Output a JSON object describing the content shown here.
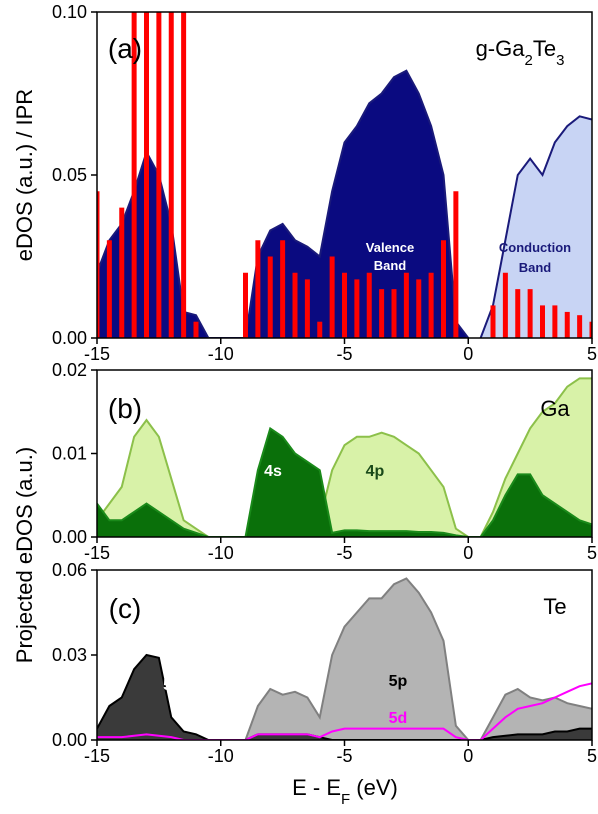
{
  "chart_data": [
    {
      "type": "area",
      "title": [
        "g-Ga",
        "2",
        "Te",
        "3"
      ],
      "ylabel": "eDOS (a.u.) / IPR",
      "annotations": [
        "(a)",
        "Valence",
        "Band",
        "Conduction",
        "Band"
      ],
      "x": [
        -15,
        -14.5,
        -14,
        -13.5,
        -13,
        -12.5,
        -12,
        -11.5,
        -11,
        -10.5,
        -10,
        -9.5,
        -9,
        -8.5,
        -8,
        -7.5,
        -7,
        -6.5,
        -6,
        -5.5,
        -5,
        -4.5,
        -4,
        -3.5,
        -3,
        -2.5,
        -2,
        -1.5,
        -1,
        -0.5,
        0,
        0.5,
        1,
        1.5,
        2,
        2.5,
        3,
        3.5,
        4,
        4.5,
        5
      ],
      "xlim": [
        -15,
        5
      ],
      "xticks": [
        -15,
        -10,
        -5,
        0,
        5
      ],
      "ylim": [
        0,
        0.1
      ],
      "yticks": [
        {
          "value": 0,
          "label": "0.00"
        },
        {
          "value": 0.05,
          "label": "0.05"
        },
        {
          "value": 0.1,
          "label": "0.10"
        }
      ],
      "series": [
        {
          "style": "area",
          "color": "#1a1a7a",
          "fill": "#0a0a80",
          "values": [
            0.02,
            0.03,
            0.035,
            0.045,
            0.057,
            0.05,
            0.035,
            0.008,
            0.007,
            0,
            0,
            0,
            0,
            0.025,
            0.033,
            0.035,
            0.03,
            0.028,
            0.025,
            0.045,
            0.06,
            0.065,
            0.072,
            0.075,
            0.08,
            0.082,
            0.075,
            0.065,
            0.05,
            0.005,
            0,
            null,
            null,
            null,
            null,
            null,
            null,
            null,
            null,
            null,
            null
          ]
        },
        {
          "style": "area",
          "color": "#1a1a7a",
          "fill": "#c8d4f4",
          "values": [
            null,
            null,
            null,
            null,
            null,
            null,
            null,
            null,
            null,
            null,
            null,
            null,
            null,
            null,
            null,
            null,
            null,
            null,
            null,
            null,
            null,
            null,
            null,
            null,
            null,
            null,
            null,
            null,
            null,
            null,
            null,
            0,
            0.01,
            0.03,
            0.05,
            0.055,
            0.05,
            0.06,
            0.065,
            0.068,
            0.067
          ]
        },
        {
          "style": "spikes",
          "color": "#ff0000",
          "values": [
            0.045,
            0.03,
            0.04,
            0.1,
            0.1,
            0.1,
            0.1,
            0.1,
            0.005,
            0,
            0,
            0,
            0.02,
            0.03,
            0.025,
            0.03,
            0.02,
            0.018,
            0.005,
            0.025,
            0.02,
            0.018,
            0.02,
            0.015,
            0.015,
            0.02,
            0.018,
            0.02,
            0.03,
            0.045,
            0,
            0,
            0.01,
            0.02,
            0.015,
            0.015,
            0.01,
            0.01,
            0.008,
            0.007,
            0.005
          ]
        }
      ]
    },
    {
      "type": "area",
      "ylabel": "Projected eDOS (a.u.)",
      "annotations": [
        "(b)",
        "Ga",
        "4s",
        "4p"
      ],
      "x": [
        -15,
        -14.5,
        -14,
        -13.5,
        -13,
        -12.5,
        -12,
        -11.5,
        -11,
        -10.5,
        -10,
        -9.5,
        -9,
        -8.5,
        -8,
        -7.5,
        -7,
        -6.5,
        -6,
        -5.5,
        -5,
        -4.5,
        -4,
        -3.5,
        -3,
        -2.5,
        -2,
        -1.5,
        -1,
        -0.5,
        0,
        0.5,
        1,
        1.5,
        2,
        2.5,
        3,
        3.5,
        4,
        4.5,
        5
      ],
      "xlim": [
        -15,
        5
      ],
      "xticks": [
        -15,
        -10,
        -5,
        0,
        5
      ],
      "ylim": [
        0,
        0.02
      ],
      "yticks": [
        {
          "value": 0,
          "label": "0.00"
        },
        0.01,
        0.02
      ],
      "series": [
        {
          "style": "area",
          "color": "#8cc04a",
          "fill": "#d8f2a8",
          "values": [
            0.002,
            0.004,
            0.006,
            0.012,
            0.014,
            0.012,
            0.007,
            0.002,
            0.001,
            0,
            0,
            0,
            0,
            0.002,
            0.002,
            0.002,
            0.002,
            0.002,
            0.002,
            0.008,
            0.011,
            0.012,
            0.012,
            0.0125,
            0.012,
            0.011,
            0.01,
            0.008,
            0.006,
            0.001,
            0,
            0,
            0.003,
            0.007,
            0.01,
            0.013,
            0.015,
            0.016,
            0.018,
            0.019,
            0.019
          ]
        },
        {
          "style": "area",
          "color": "#1a8a1a",
          "fill": "#0a700a",
          "values": [
            0.004,
            0.002,
            0.002,
            0.003,
            0.004,
            0.003,
            0.002,
            0.001,
            0.0005,
            0,
            0,
            0,
            0,
            0.008,
            0.013,
            0.012,
            0.01,
            0.009,
            0.008,
            0.0005,
            0.0008,
            0.0008,
            0.0007,
            0.0007,
            0.0007,
            0.0007,
            0.0006,
            0.0006,
            0.0005,
            0.0002,
            0,
            0,
            0.002,
            0.005,
            0.0075,
            0.0075,
            0.005,
            0.004,
            0.003,
            0.002,
            0.0015
          ]
        }
      ]
    },
    {
      "type": "area",
      "xlabel": [
        "E - E",
        "F",
        " (eV)"
      ],
      "annotations": [
        "(c)",
        "Te",
        "5s",
        "5p",
        "5d"
      ],
      "x": [
        -15,
        -14.5,
        -14,
        -13.5,
        -13,
        -12.5,
        -12,
        -11.5,
        -11,
        -10.5,
        -10,
        -9.5,
        -9,
        -8.5,
        -8,
        -7.5,
        -7,
        -6.5,
        -6,
        -5.5,
        -5,
        -4.5,
        -4,
        -3.5,
        -3,
        -2.5,
        -2,
        -1.5,
        -1,
        -0.5,
        0,
        0.5,
        1,
        1.5,
        2,
        2.5,
        3,
        3.5,
        4,
        4.5,
        5
      ],
      "xlim": [
        -15,
        5
      ],
      "xticks": [
        -15,
        -10,
        -5,
        0,
        5
      ],
      "ylim": [
        0,
        0.06
      ],
      "yticks": [
        {
          "value": 0,
          "label": "0.00"
        },
        0.03,
        0.06
      ],
      "series": [
        {
          "style": "area",
          "color": "#808080",
          "fill": "#b4b4b4",
          "values": [
            0.004,
            0.002,
            0.002,
            0.003,
            0.004,
            0.003,
            0.001,
            0,
            0,
            0,
            0,
            0,
            0,
            0.012,
            0.018,
            0.016,
            0.017,
            0.015,
            0.008,
            0.03,
            0.04,
            0.045,
            0.05,
            0.05,
            0.055,
            0.057,
            0.052,
            0.045,
            0.035,
            0.005,
            0,
            0,
            0.008,
            0.016,
            0.018,
            0.015,
            0.014,
            0.015,
            0.013,
            0.012,
            0.011
          ]
        },
        {
          "style": "area",
          "color": "#000000",
          "fill": "#3a3a3a",
          "values": [
            0.004,
            0.012,
            0.015,
            0.025,
            0.03,
            0.029,
            0.008,
            0.003,
            0.002,
            0,
            0,
            0,
            0,
            0.002,
            0.002,
            0.002,
            0.002,
            0.002,
            0.001,
            0,
            0,
            0,
            0,
            0,
            0,
            0,
            0,
            0,
            0,
            0,
            0,
            0,
            0.001,
            0.0015,
            0.002,
            0.002,
            0.002,
            0.003,
            0.003,
            0.004,
            0.004
          ]
        },
        {
          "style": "line",
          "color": "#ff00ff",
          "values": [
            0.001,
            0.001,
            0.001,
            0.0015,
            0.002,
            0.0015,
            0.001,
            0,
            0,
            0,
            0,
            0,
            0,
            0.002,
            0.002,
            0.002,
            0.002,
            0.002,
            0.001,
            0.003,
            0.004,
            0.004,
            0.004,
            0.004,
            0.004,
            0.004,
            0.004,
            0.004,
            0.004,
            0.001,
            0,
            0,
            0.004,
            0.008,
            0.011,
            0.012,
            0.013,
            0.015,
            0.017,
            0.019,
            0.02
          ]
        }
      ]
    }
  ]
}
